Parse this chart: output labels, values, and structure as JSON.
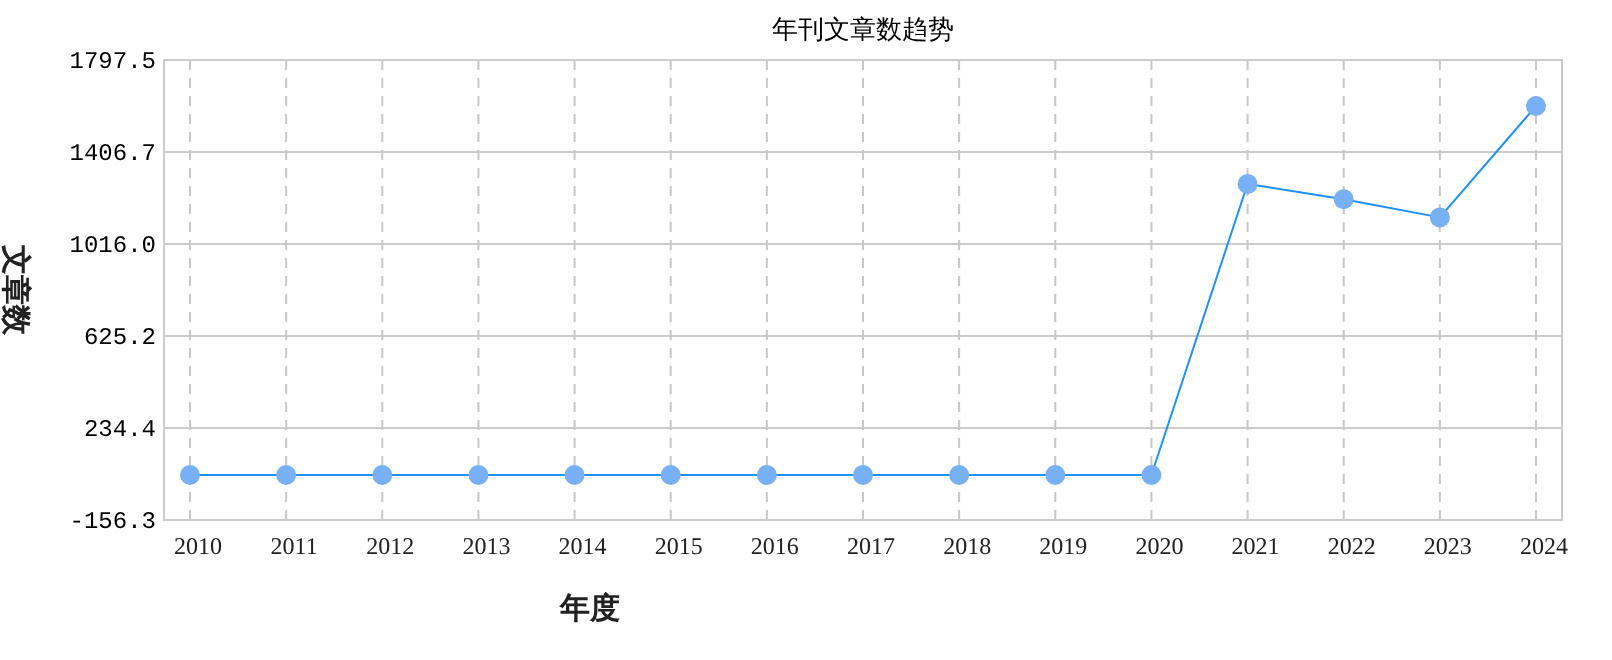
{
  "chart_data": {
    "type": "line",
    "title": "年刊文章数趋势",
    "xlabel": "年度",
    "ylabel": "文章数",
    "categories": [
      "2010",
      "2011",
      "2012",
      "2013",
      "2014",
      "2015",
      "2016",
      "2017",
      "2018",
      "2019",
      "2020",
      "2021",
      "2022",
      "2023",
      "2024"
    ],
    "series": [
      {
        "color": "#1e90ff",
        "values": [
          35,
          35,
          35,
          35,
          35,
          35,
          35,
          35,
          35,
          35,
          35,
          1271,
          1206,
          1129,
          1602
        ]
      }
    ],
    "ylim": [
      -156.3,
      1797.5
    ],
    "yticks": [
      -156.3,
      234.4,
      625.2,
      {
        "value": 1016.0,
        "label": "1016.0"
      },
      1406.7,
      1797.5
    ],
    "grid": true,
    "marker": "circle",
    "line_style": "solid"
  }
}
